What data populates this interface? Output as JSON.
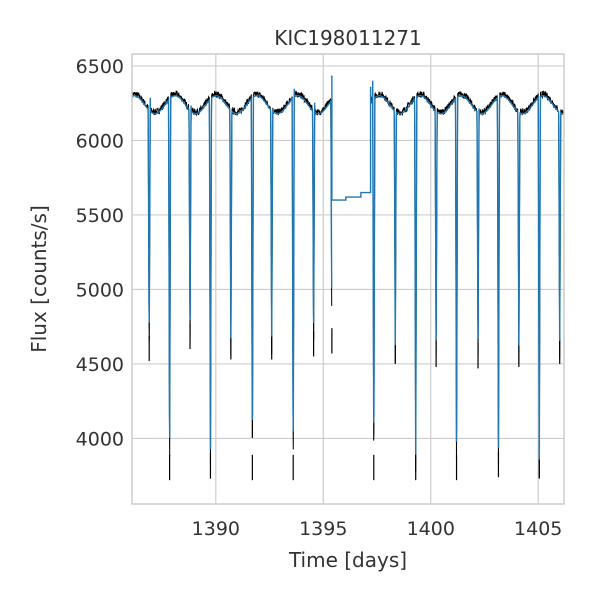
{
  "chart_data": {
    "type": "line",
    "title": "KIC198011271",
    "xlabel": "Time [days]",
    "ylabel": "Flux [counts/s]",
    "xlim": [
      1386.1,
      1406.2
    ],
    "ylim": [
      3560,
      6580
    ],
    "x_ticks": [
      1390,
      1395,
      1400,
      1405
    ],
    "y_ticks": [
      4000,
      4500,
      5000,
      5500,
      6000,
      6500
    ],
    "grid": true,
    "legend": "none",
    "colors": {
      "raw": "#000000",
      "model": "#1f77b4",
      "grid": "#cccccc",
      "frame": "#cccccc",
      "background": "#ffffff"
    },
    "series": [
      {
        "style": "noisy-raw",
        "baseline": 6250,
        "modulation_amplitude": 60,
        "modulation_period": 1.9,
        "noise": 22,
        "segments": [
          [
            1386.1,
            1395.4
          ],
          [
            1397.2,
            1406.2
          ]
        ]
      },
      {
        "style": "model-step",
        "data_gap": {
          "x": [
            1395.35,
            1395.4,
            1396.0,
            1396.05,
            1396.7,
            1396.75,
            1397.2
          ],
          "y": [
            6430,
            5600,
            5600,
            5620,
            5620,
            5650,
            6360
          ]
        }
      }
    ],
    "eclipses": [
      {
        "x": 1386.9,
        "depth_min": 4520
      },
      {
        "x": 1387.85,
        "depth_min": 3720
      },
      {
        "x": 1388.8,
        "depth_min": 4600
      },
      {
        "x": 1389.75,
        "depth_min": 3730
      },
      {
        "x": 1390.7,
        "depth_min": 4530
      },
      {
        "x": 1391.7,
        "depth_min": 3720
      },
      {
        "x": 1392.6,
        "depth_min": 4530
      },
      {
        "x": 1393.6,
        "depth_min": 3720
      },
      {
        "x": 1394.55,
        "depth_min": 4550
      },
      {
        "x": 1395.4,
        "depth_min": 4570
      },
      {
        "x": 1397.35,
        "depth_min": 3720
      },
      {
        "x": 1398.35,
        "depth_min": 4500
      },
      {
        "x": 1399.3,
        "depth_min": 3720
      },
      {
        "x": 1400.25,
        "depth_min": 4480
      },
      {
        "x": 1401.2,
        "depth_min": 3720
      },
      {
        "x": 1402.2,
        "depth_min": 4470
      },
      {
        "x": 1403.15,
        "depth_min": 3740
      },
      {
        "x": 1404.1,
        "depth_min": 4480
      },
      {
        "x": 1405.05,
        "depth_min": 3730
      },
      {
        "x": 1406.0,
        "depth_min": 4500
      }
    ]
  }
}
